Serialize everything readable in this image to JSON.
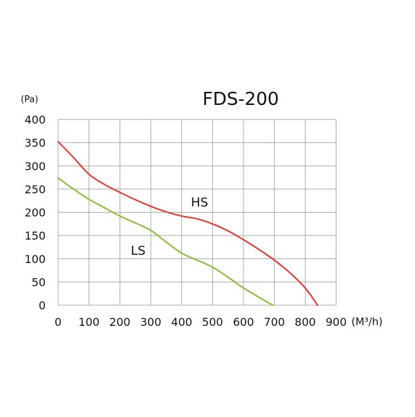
{
  "chart_data": {
    "type": "line",
    "title": "FDS-200",
    "ylabel": "(Pa)",
    "xlabel": "(M³/h)",
    "xlim": [
      0,
      900
    ],
    "ylim": [
      0,
      400
    ],
    "x_ticks": [
      0,
      100,
      200,
      300,
      400,
      500,
      600,
      700,
      800,
      900
    ],
    "y_ticks": [
      0,
      50,
      100,
      150,
      200,
      250,
      300,
      350,
      400
    ],
    "x_tick_labels": [
      "0",
      "100",
      "200",
      "300",
      "400",
      "500",
      "600",
      "700",
      "800",
      "900"
    ],
    "y_tick_labels": [
      "0",
      "50",
      "100",
      "150",
      "200",
      "250",
      "300",
      "350",
      "400"
    ],
    "grid": true,
    "series": [
      {
        "name": "HS",
        "color": "#d9413a",
        "points": [
          [
            0,
            352
          ],
          [
            50,
            318
          ],
          [
            100,
            282
          ],
          [
            150,
            260
          ],
          [
            200,
            243
          ],
          [
            250,
            227
          ],
          [
            300,
            213
          ],
          [
            350,
            201
          ],
          [
            400,
            192
          ],
          [
            450,
            186
          ],
          [
            500,
            175
          ],
          [
            550,
            160
          ],
          [
            600,
            141
          ],
          [
            650,
            120
          ],
          [
            700,
            97
          ],
          [
            750,
            70
          ],
          [
            800,
            37
          ],
          [
            840,
            0
          ]
        ]
      },
      {
        "name": "LS",
        "color": "#8cbf3f",
        "points": [
          [
            0,
            274
          ],
          [
            50,
            250
          ],
          [
            100,
            228
          ],
          [
            150,
            210
          ],
          [
            200,
            192
          ],
          [
            250,
            177
          ],
          [
            300,
            161
          ],
          [
            350,
            136
          ],
          [
            400,
            112
          ],
          [
            450,
            97
          ],
          [
            500,
            82
          ],
          [
            550,
            60
          ],
          [
            600,
            37
          ],
          [
            650,
            17
          ],
          [
            695,
            0
          ]
        ]
      }
    ]
  }
}
